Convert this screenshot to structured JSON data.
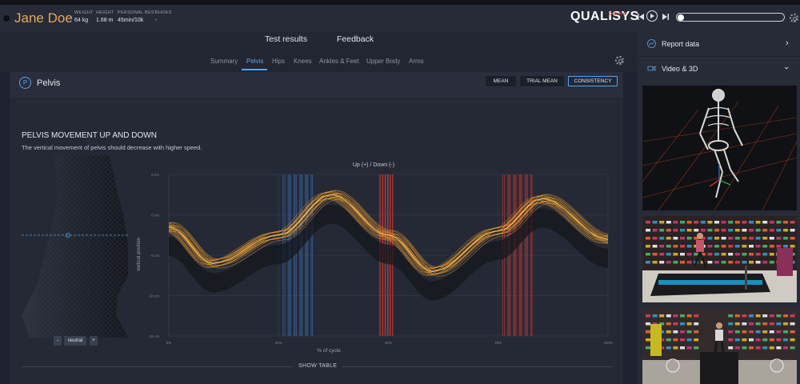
{
  "athlete": {
    "name": "Jane Doe",
    "stats": [
      {
        "label": "WEIGHT",
        "value": "64 kg"
      },
      {
        "label": "HEIGHT",
        "value": "1.68 m"
      },
      {
        "label": "PERSONAL BEST",
        "value": "45min/10k"
      },
      {
        "label": "SHOES",
        "value": "-"
      }
    ]
  },
  "brand": {
    "logo": "QUALISYS"
  },
  "main_tabs": [
    "Test results",
    "Feedback"
  ],
  "sub_tabs": [
    "Summary",
    "Pelvis",
    "Hips",
    "Knees",
    "Ankles & Feet",
    "Upper Body",
    "Arms"
  ],
  "active_sub_tab": "Pelvis",
  "panel": {
    "badge": "P",
    "title": "Pelvis",
    "buttons": [
      "MEAN",
      "TRIAL MEAN",
      "CONSISTENCY"
    ],
    "active_button": "CONSISTENCY"
  },
  "section": {
    "title": "PELVIS MOVEMENT UP AND DOWN",
    "description": "The vertical movement of pelvis should decrease with higher speed."
  },
  "neutral_controls": {
    "minus": "-",
    "label": "neutral",
    "plus": "+"
  },
  "show_table": "SHOW TABLE",
  "sidebar": {
    "report_label": "Report data",
    "video_label": "Video & 3D"
  },
  "colors": {
    "accent": "#5aa3e6",
    "name": "#e6a85a",
    "curve": "#f0a030",
    "blue_band": "#3d6fb6",
    "red_band": "#d23a32"
  },
  "chart_data": {
    "type": "line",
    "title": "Up (+) / Down (-)",
    "xlabel": "% of cycle",
    "ylabel": "vertical position",
    "xlim": [
      0,
      100
    ],
    "ylim": [
      -15,
      5
    ],
    "x_ticks": [
      "0%",
      "25%",
      "50%",
      "75%",
      "100%"
    ],
    "y_ticks": [
      "5 cm",
      "0 cm",
      "-5 cm",
      "-10 cm",
      "-15 cm"
    ],
    "mean_curve": {
      "x": [
        0,
        10,
        25,
        37,
        50,
        60,
        75,
        85,
        100
      ],
      "y": [
        -1.5,
        -6,
        -2.5,
        2.5,
        -2.5,
        -7,
        -2.0,
        2.0,
        -3.0
      ]
    },
    "bands": [
      {
        "color": "blue",
        "from": 26,
        "to": 33
      },
      {
        "color": "red",
        "from": 48,
        "to": 51
      },
      {
        "color": "red",
        "from": 76,
        "to": 83
      }
    ]
  }
}
